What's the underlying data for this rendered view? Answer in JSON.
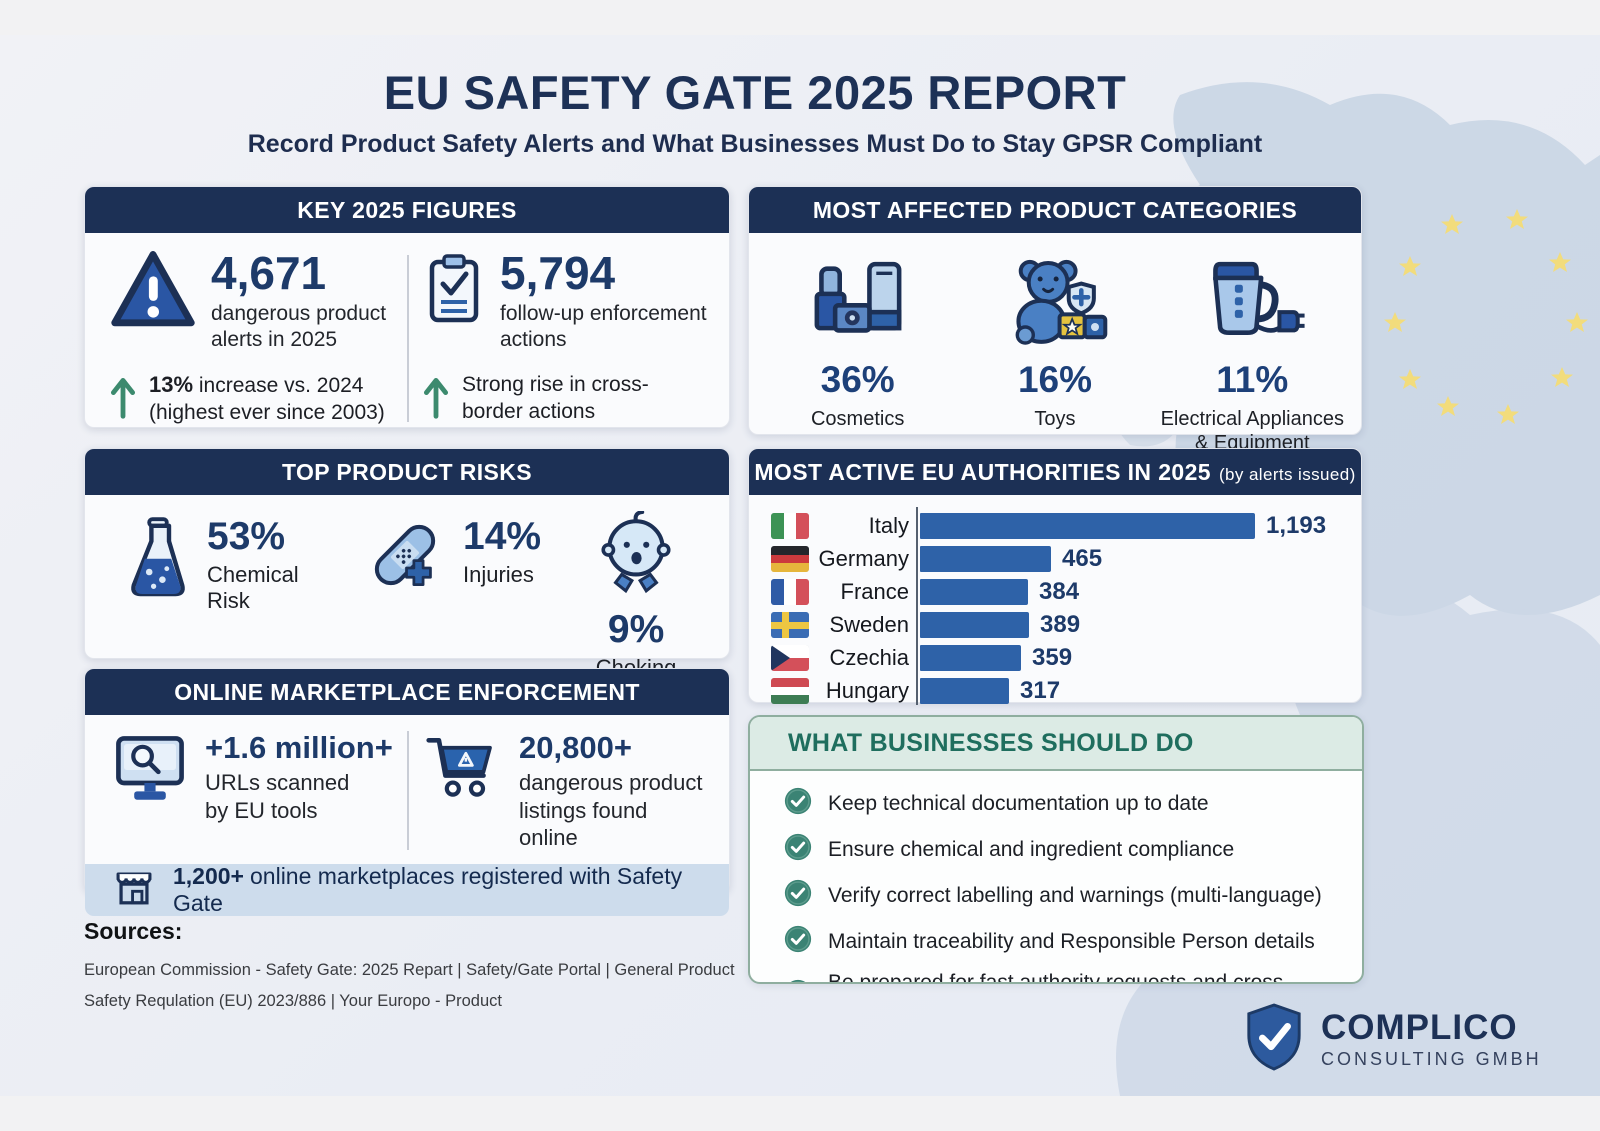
{
  "page": {
    "title": "EU SAFETY GATE 2025 REPORT",
    "subtitle": "Record Product Safety Alerts and What Businesses Must Do to Stay GPSR Compliant"
  },
  "key_figures": {
    "header": "KEY 2025 FIGURES",
    "alerts_value": "4,671",
    "alerts_label": "dangerous product alerts in 2025",
    "alerts_note_bold": "13%",
    "alerts_note": " increase vs. 2024 (highest ever since 2003)",
    "actions_value": "5,794",
    "actions_label": "follow-up enforcement actions",
    "actions_note": "Strong rise in cross-border actions"
  },
  "product_categories": {
    "header": "MOST AFFECTED PRODUCT CATEGORIES",
    "items": [
      {
        "pct": "36%",
        "label": "Cosmetics"
      },
      {
        "pct": "16%",
        "label": "Toys"
      },
      {
        "pct": "11%",
        "label": "Electrical Appliances & Equipment"
      }
    ]
  },
  "product_risks": {
    "header": "TOP PRODUCT RISKS",
    "items": [
      {
        "pct": "53%",
        "label": "Chemical Risk"
      },
      {
        "pct": "14%",
        "label": "Injuries"
      },
      {
        "pct": "9%",
        "label": "Choking"
      }
    ]
  },
  "authorities": {
    "title": "MOST ACTIVE EU AUTHORITIES IN 2025",
    "note": "(by alerts issued)"
  },
  "chart_data": {
    "type": "bar",
    "orientation": "horizontal",
    "title": "MOST ACTIVE EU AUTHORITIES IN 2025 (by alerts issued)",
    "categories": [
      "Italy",
      "Germany",
      "France",
      "Sweden",
      "Czechia",
      "Hungary"
    ],
    "values": [
      1193,
      465,
      384,
      389,
      359,
      317
    ],
    "value_labels": [
      "1,193",
      "465",
      "384",
      "389",
      "359",
      "317"
    ],
    "xlim": [
      0,
      1250
    ],
    "bar_color": "#2e62a8",
    "grid": false,
    "legend": "none"
  },
  "marketplace": {
    "header": "ONLINE MARKETPLACE ENFORCEMENT",
    "urls_value": "+1.6 million+",
    "urls_label": "URLs scanned by EU tools",
    "listings_value": "20,800+",
    "listings_label": "dangerous product listings found online",
    "registered_value": "1,200+",
    "registered_label": "online marketplaces registered with Safety Gate"
  },
  "business_todo": {
    "header": "WHAT BUSINESSES SHOULD DO",
    "items": [
      "Keep technical documentation up to date",
      "Ensure chemical and ingredient compliance",
      "Verify correct labelling and warnings (multi-language)",
      "Maintain traceability and Responsible Person details",
      "Be prepared for fast authority requests and cross-border checks"
    ]
  },
  "sources": {
    "label": "Sources:",
    "line1": "European Commission - Safety Gate: 2025 Repart | Safety/Gate Portal | General Product",
    "line2": "Safety Requlation (EU) 2023/886 | Your Europo - Product"
  },
  "logo": {
    "name": "COMPLICO",
    "subtitle": "CONSULTING GMBH"
  },
  "colors": {
    "header_navy": "#1c3055",
    "stat_navy": "#1d3a69",
    "bar_blue": "#2e62a8",
    "teal_green": "#3c8a6e",
    "band_blue": "#cddcec",
    "star_yellow": "#f2dc7c",
    "map_blue": "#c7d3e3"
  }
}
